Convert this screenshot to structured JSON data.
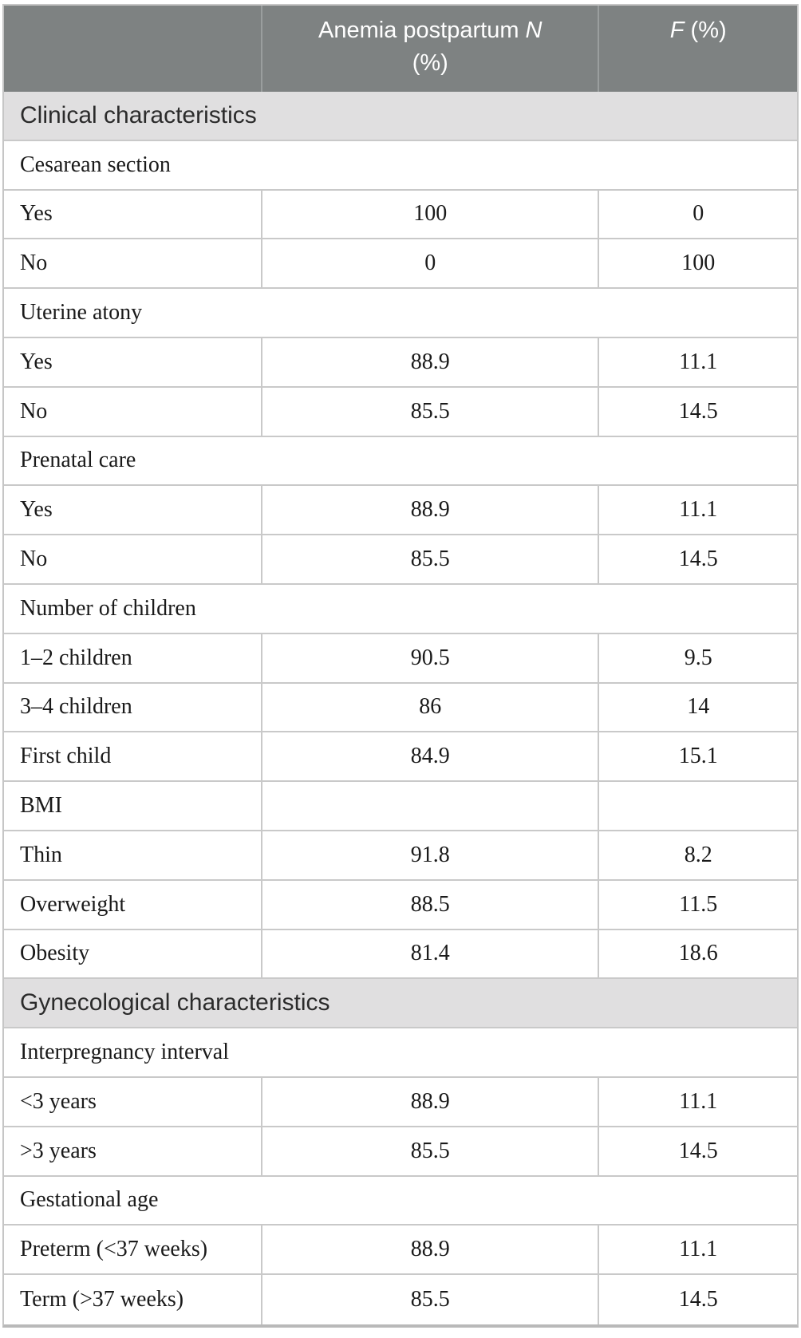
{
  "header": {
    "col2": {
      "line1_text": "Anemia postpartum ",
      "line1_italic": "N",
      "line2": "(%)"
    },
    "col3": {
      "italic": "F",
      "rest": " (%)"
    }
  },
  "rows": [
    {
      "type": "section",
      "label": "Clinical characteristics"
    },
    {
      "type": "category",
      "label": "Cesarean section"
    },
    {
      "type": "data",
      "label": "Yes",
      "anemia": "100",
      "f": "0"
    },
    {
      "type": "data",
      "label": "No",
      "anemia": "0",
      "f": "100"
    },
    {
      "type": "category",
      "label": "Uterine atony"
    },
    {
      "type": "data",
      "label": "Yes",
      "anemia": "88.9",
      "f": "11.1"
    },
    {
      "type": "data",
      "label": "No",
      "anemia": "85.5",
      "f": "14.5"
    },
    {
      "type": "category",
      "label": "Prenatal care"
    },
    {
      "type": "data",
      "label": "Yes",
      "anemia": "88.9",
      "f": "11.1"
    },
    {
      "type": "data",
      "label": "No",
      "anemia": "85.5",
      "f": "14.5"
    },
    {
      "type": "category",
      "label": "Number of children"
    },
    {
      "type": "data",
      "label": "1–2 children",
      "anemia": "90.5",
      "f": "9.5"
    },
    {
      "type": "data",
      "label": "3–4 children",
      "anemia": "86",
      "f": "14"
    },
    {
      "type": "data",
      "label": "First child",
      "anemia": "84.9",
      "f": "15.1"
    },
    {
      "type": "data",
      "label": "BMI",
      "anemia": "",
      "f": ""
    },
    {
      "type": "data",
      "label": "Thin",
      "anemia": "91.8",
      "f": "8.2"
    },
    {
      "type": "data",
      "label": "Overweight",
      "anemia": "88.5",
      "f": "11.5"
    },
    {
      "type": "data",
      "label": "Obesity",
      "anemia": "81.4",
      "f": "18.6"
    },
    {
      "type": "section",
      "label": "Gynecological characteristics"
    },
    {
      "type": "category",
      "label": "Interpregnancy interval"
    },
    {
      "type": "data",
      "label": "<3 years",
      "anemia": "88.9",
      "f": "11.1"
    },
    {
      "type": "data",
      "label": ">3 years",
      "anemia": "85.5",
      "f": "14.5"
    },
    {
      "type": "category",
      "label": "Gestational age"
    },
    {
      "type": "data",
      "label": "Preterm (<37 weeks)",
      "anemia": "88.9",
      "f": "11.1"
    },
    {
      "type": "data",
      "label": "Term (>37 weeks)",
      "anemia": "85.5",
      "f": "14.5"
    }
  ],
  "colors": {
    "header_background": "#7e8282",
    "header_text": "#ffffff",
    "section_background": "#e0dfe0",
    "body_text": "#1a1a1a",
    "border": "#c9c9c9",
    "bottom_border": "#b9b9b9"
  }
}
